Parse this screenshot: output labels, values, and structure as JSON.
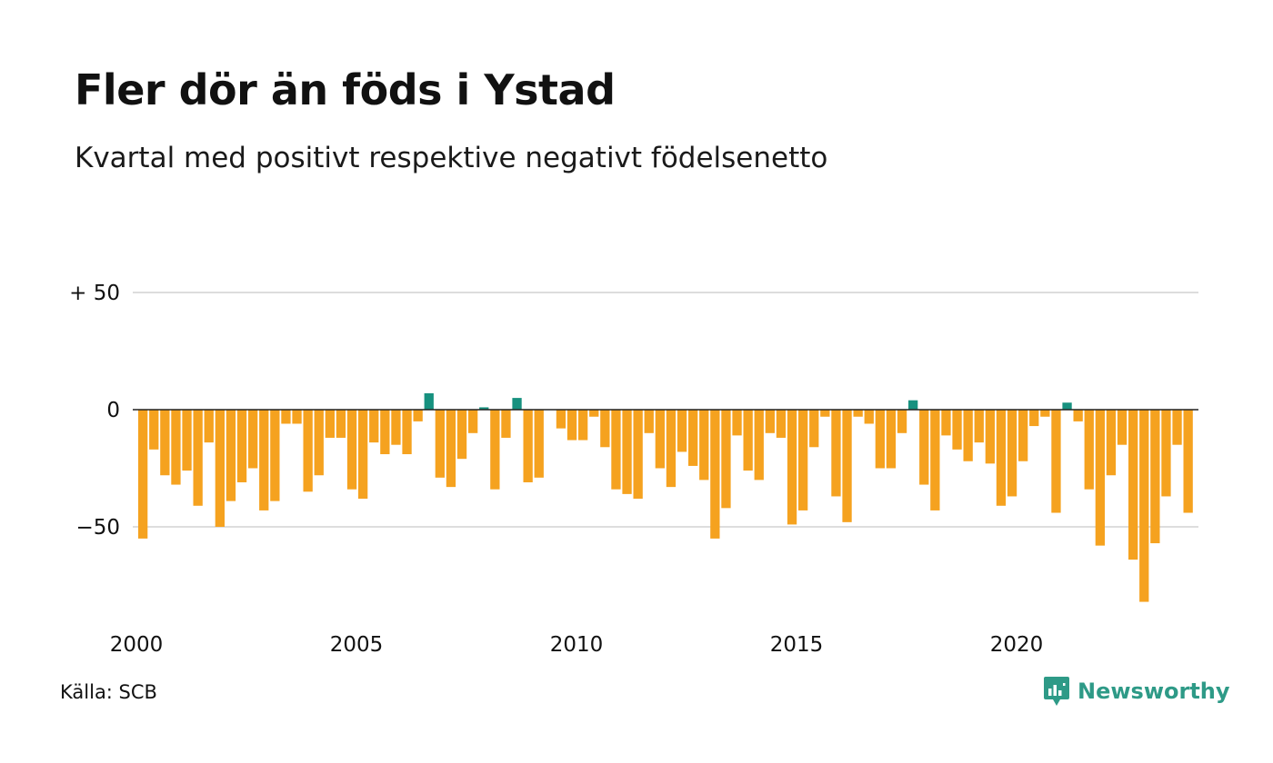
{
  "title": "Fler dör än föds i Ystad",
  "subtitle": "Kvartal med positivt respektive negativt födelsenetto",
  "source": "Källa: SCB",
  "logo_text": "Newsworthy",
  "colors": {
    "negative": "#f5a21f",
    "positive": "#17917f",
    "grid": "#dddddd",
    "zero_line": "#222222",
    "brand": "#2e9a87"
  },
  "chart_data": {
    "type": "bar",
    "title": "Fler dör än föds i Ystad",
    "subtitle": "Kvartal med positivt respektive negativt födelsenetto",
    "xlabel": "",
    "ylabel": "",
    "x_start": "2000 Q1",
    "x_ticks": [
      "2000",
      "2005",
      "2010",
      "2015",
      "2020"
    ],
    "y_ticks": [
      {
        "value": 50,
        "label": "+ 50"
      },
      {
        "value": 0,
        "label": "0"
      },
      {
        "value": -50,
        "label": "−50"
      }
    ],
    "ylim": [
      -85,
      50
    ],
    "grid": true,
    "values": [
      -55,
      -17,
      -28,
      -32,
      -26,
      -41,
      -14,
      -50,
      -39,
      -31,
      -25,
      -43,
      -39,
      -6,
      -6,
      -35,
      -28,
      -12,
      -12,
      -34,
      -38,
      -14,
      -19,
      -15,
      -19,
      -5,
      7,
      -29,
      -33,
      -21,
      -10,
      1,
      -34,
      -12,
      5,
      -31,
      -29,
      0,
      -8,
      -13,
      -13,
      -3,
      -16,
      -34,
      -36,
      -38,
      -10,
      -25,
      -33,
      -18,
      -24,
      -30,
      -55,
      -42,
      -11,
      -26,
      -30,
      -10,
      -12,
      -49,
      -43,
      -16,
      -3,
      -37,
      -48,
      -3,
      -6,
      -25,
      -25,
      -10,
      4,
      -32,
      -43,
      -11,
      -17,
      -22,
      -14,
      -23,
      -41,
      -37,
      -22,
      -7,
      -3,
      -44,
      3,
      -5,
      -34,
      -58,
      -28,
      -15,
      -64,
      -82,
      -57,
      -37,
      -15,
      -44
    ]
  }
}
